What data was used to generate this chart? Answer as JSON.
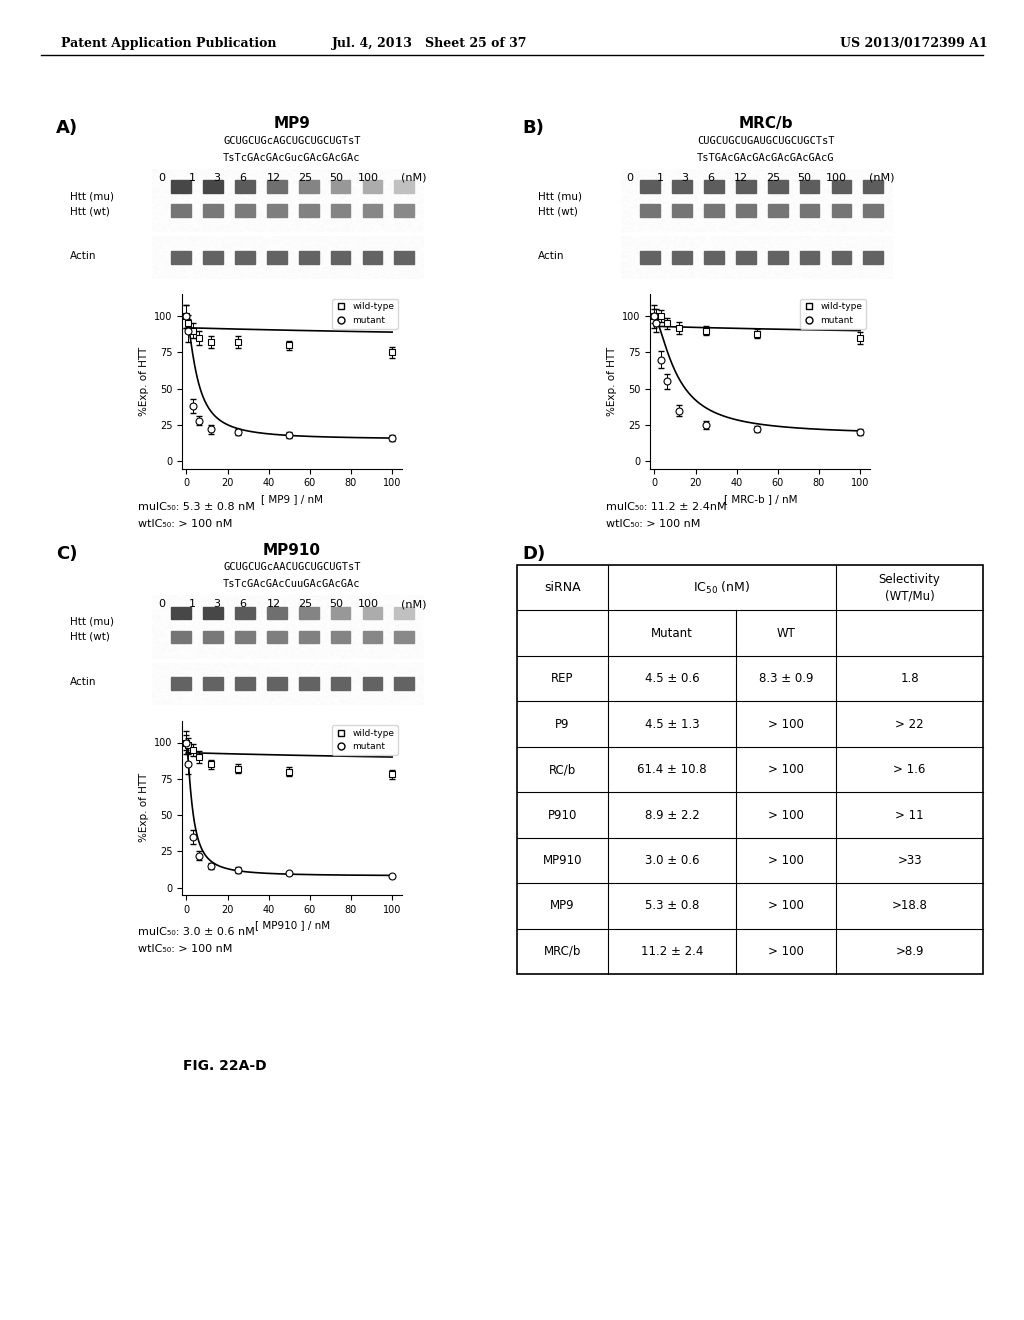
{
  "header_left": "Patent Application Publication",
  "header_mid": "Jul. 4, 2013   Sheet 25 of 37",
  "header_right": "US 2013/0172399 A1",
  "panel_A_title": "MP9",
  "panel_A_seq1": "GCUGCUGcAGCUGCUGCUGTsT",
  "panel_A_seq2": "TsTcGAcGAcGucGAcGAcGAc",
  "panel_A_label1": "Htt (mu)",
  "panel_A_label2": "Htt (wt)",
  "panel_A_label3": "Actin",
  "panel_A_xlabel": "[ MP9 ] / nM",
  "panel_A_ic50_mu": "mulC₅₀: 5.3 ± 0.8 nM",
  "panel_A_ic50_wt": "wtlC₅₀: > 100 nM",
  "panel_A_wt_x": [
    0,
    1,
    3,
    6,
    12,
    25,
    50,
    100
  ],
  "panel_A_wt_y": [
    100,
    95,
    90,
    85,
    82,
    82,
    80,
    75
  ],
  "panel_A_mu_x": [
    0,
    1,
    3,
    6,
    12,
    25,
    50,
    100
  ],
  "panel_A_mu_y": [
    100,
    90,
    38,
    28,
    22,
    20,
    18,
    16
  ],
  "panel_B_title": "MRC/b",
  "panel_B_seq1": "CUGCUGCUGAUGCUGCUGCTsT",
  "panel_B_seq2": "TsTGAcGAcGAcGAcGAcGAcG",
  "panel_B_label1": "Htt (mu)",
  "panel_B_label2": "Htt (wt)",
  "panel_B_label3": "Actin",
  "panel_B_xlabel": "[ MRC-b ] / nM",
  "panel_B_ic50_mu": "mulC₅₀: 11.2 ± 2.4nM",
  "panel_B_ic50_wt": "wtlC₅₀: > 100 nM",
  "panel_B_wt_x": [
    0,
    1,
    3,
    6,
    12,
    25,
    50,
    100
  ],
  "panel_B_wt_y": [
    100,
    100,
    100,
    95,
    92,
    90,
    88,
    85
  ],
  "panel_B_mu_x": [
    0,
    1,
    3,
    6,
    12,
    25,
    50,
    100
  ],
  "panel_B_mu_y": [
    100,
    95,
    70,
    55,
    35,
    25,
    22,
    20
  ],
  "panel_C_title": "MP910",
  "panel_C_seq1": "GCUGCUGcAACUGCUGCUGTsT",
  "panel_C_seq2": "TsTcGAcGAcCuuGAcGAcGAc",
  "panel_C_label1": "Htt (mu)",
  "panel_C_label2": "Htt (wt)",
  "panel_C_label3": "Actin",
  "panel_C_xlabel": "[ MP910 ] / nM",
  "panel_C_ic50_mu": "mulC₅₀: 3.0 ± 0.6 nM",
  "panel_C_ic50_wt": "wtlC₅₀: > 100 nM",
  "panel_C_wt_x": [
    0,
    1,
    3,
    6,
    12,
    25,
    50,
    100
  ],
  "panel_C_wt_y": [
    100,
    98,
    95,
    90,
    85,
    82,
    80,
    78
  ],
  "panel_C_mu_x": [
    0,
    1,
    3,
    6,
    12,
    25,
    50,
    100
  ],
  "panel_C_mu_y": [
    100,
    85,
    35,
    22,
    15,
    12,
    10,
    8
  ],
  "table_rows": [
    [
      "REP",
      "4.5 ± 0.6",
      "8.3 ± 0.9",
      "1.8"
    ],
    [
      "P9",
      "4.5 ± 1.3",
      "> 100",
      "> 22"
    ],
    [
      "RC/b",
      "61.4 ± 10.8",
      "> 100",
      "> 1.6"
    ],
    [
      "P910",
      "8.9 ± 2.2",
      "> 100",
      "> 11"
    ],
    [
      "MP910",
      "3.0 ± 0.6",
      "> 100",
      ">33"
    ],
    [
      "MP9",
      "5.3 ± 0.8",
      "> 100",
      ">18.8"
    ],
    [
      "MRC/b",
      "11.2 ± 2.4",
      "> 100",
      ">8.9"
    ]
  ],
  "caption": "FIG. 22A-D",
  "bg_color": "#ffffff",
  "text_color": "#000000",
  "conc_labels": [
    "0",
    "1",
    "3",
    "6",
    "12",
    "25",
    "50",
    "100"
  ]
}
